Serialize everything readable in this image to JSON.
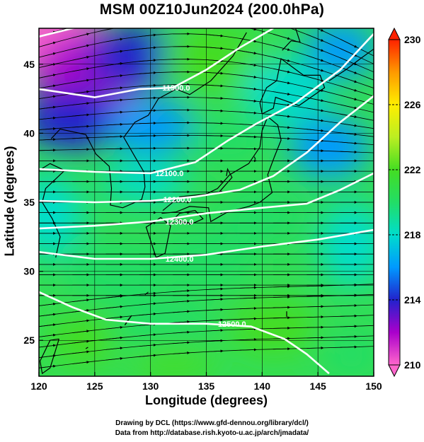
{
  "title": "MSM 00Z10Jun2024 (200.0hPa)",
  "xlabel": "Longitude (degrees)",
  "ylabel": "Latitude  (degrees)",
  "credit_line1": "Drawing by DCL (https://www.gfd-dennou.org/library/dcl/)",
  "credit_line2": "Data from http://database.rish.kyoto-u.ac.jp/arch/jmadata/",
  "map": {
    "lon_range": [
      120,
      150
    ],
    "lat_range": [
      22.4,
      47.6
    ],
    "lon_ticks": [
      120,
      125,
      130,
      135,
      140,
      145,
      150
    ],
    "lat_ticks": [
      25,
      30,
      35,
      40,
      45
    ],
    "grid": true,
    "field": "temperature (shaded)",
    "streamlines": true
  },
  "colorbar": {
    "min": 210,
    "max": 230,
    "labels": [
      230,
      226,
      222,
      218,
      214,
      210
    ],
    "stops": [
      {
        "v": 210,
        "color": "#ff66cc"
      },
      {
        "v": 212,
        "color": "#aa00cc"
      },
      {
        "v": 214,
        "color": "#2222cc"
      },
      {
        "v": 216,
        "color": "#0099ff"
      },
      {
        "v": 218,
        "color": "#00ddcc"
      },
      {
        "v": 220,
        "color": "#22dd66"
      },
      {
        "v": 222,
        "color": "#44dd22"
      },
      {
        "v": 224,
        "color": "#bbee22"
      },
      {
        "v": 226,
        "color": "#ffee00"
      },
      {
        "v": 228,
        "color": "#ff9900"
      },
      {
        "v": 230,
        "color": "#ff2200"
      }
    ]
  },
  "contours": [
    {
      "label": "11900.0",
      "lon": 132.3,
      "lat": 43.3
    },
    {
      "label": "12100.0",
      "lon": 131.7,
      "lat": 37.1
    },
    {
      "label": "12200.0",
      "lon": 132.4,
      "lat": 35.2
    },
    {
      "label": "12300.0",
      "lon": 132.6,
      "lat": 33.6
    },
    {
      "label": "12400.0",
      "lon": 132.6,
      "lat": 30.9
    },
    {
      "label": "12500.0",
      "lon": 137.3,
      "lat": 26.2
    }
  ]
}
